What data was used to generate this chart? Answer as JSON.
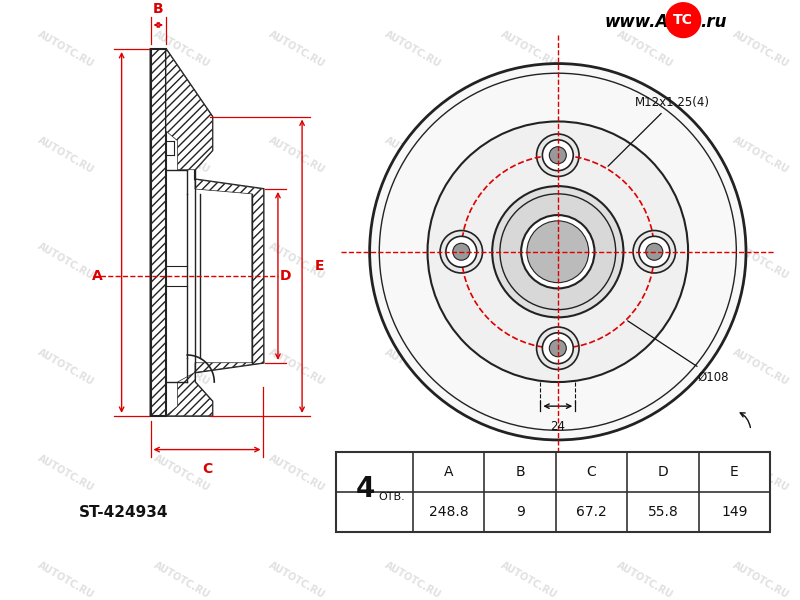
{
  "bg_color": "#ffffff",
  "part_number": "ST-424934",
  "holes_count": "4",
  "otv_label": "ОТВ.",
  "table_headers": [
    "A",
    "B",
    "C",
    "D",
    "E"
  ],
  "table_values": [
    "248.8",
    "9",
    "67.2",
    "55.8",
    "149"
  ],
  "annotation_bolt": "M12x1.25(4)",
  "annotation_108": "Ø108",
  "annotation_24": "24",
  "red_color": "#dd0000",
  "black_color": "#111111",
  "line_color": "#222222",
  "table_border_color": "#333333",
  "watermark_color": "#cccccc"
}
